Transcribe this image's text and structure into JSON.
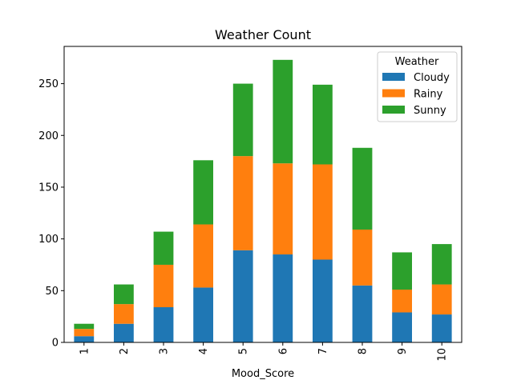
{
  "chart_data": {
    "type": "bar",
    "stacked": true,
    "title": "Weather Count",
    "xlabel": "Mood_Score",
    "ylabel": "",
    "ylim": [
      0,
      286
    ],
    "yticks": [
      0,
      50,
      100,
      150,
      200,
      250
    ],
    "categories": [
      "1",
      "2",
      "3",
      "4",
      "5",
      "6",
      "7",
      "8",
      "9",
      "10"
    ],
    "legend": {
      "title": "Weather",
      "placement": "top-right"
    },
    "series": [
      {
        "name": "Cloudy",
        "color": "#1f77b4",
        "values": [
          6,
          18,
          34,
          53,
          89,
          85,
          80,
          55,
          29,
          27
        ]
      },
      {
        "name": "Rainy",
        "color": "#ff7f0e",
        "values": [
          7,
          19,
          41,
          61,
          91,
          88,
          92,
          54,
          22,
          29
        ]
      },
      {
        "name": "Sunny",
        "color": "#2ca02c",
        "values": [
          5,
          19,
          32,
          62,
          70,
          100,
          77,
          79,
          36,
          39
        ]
      }
    ],
    "grid": false
  }
}
